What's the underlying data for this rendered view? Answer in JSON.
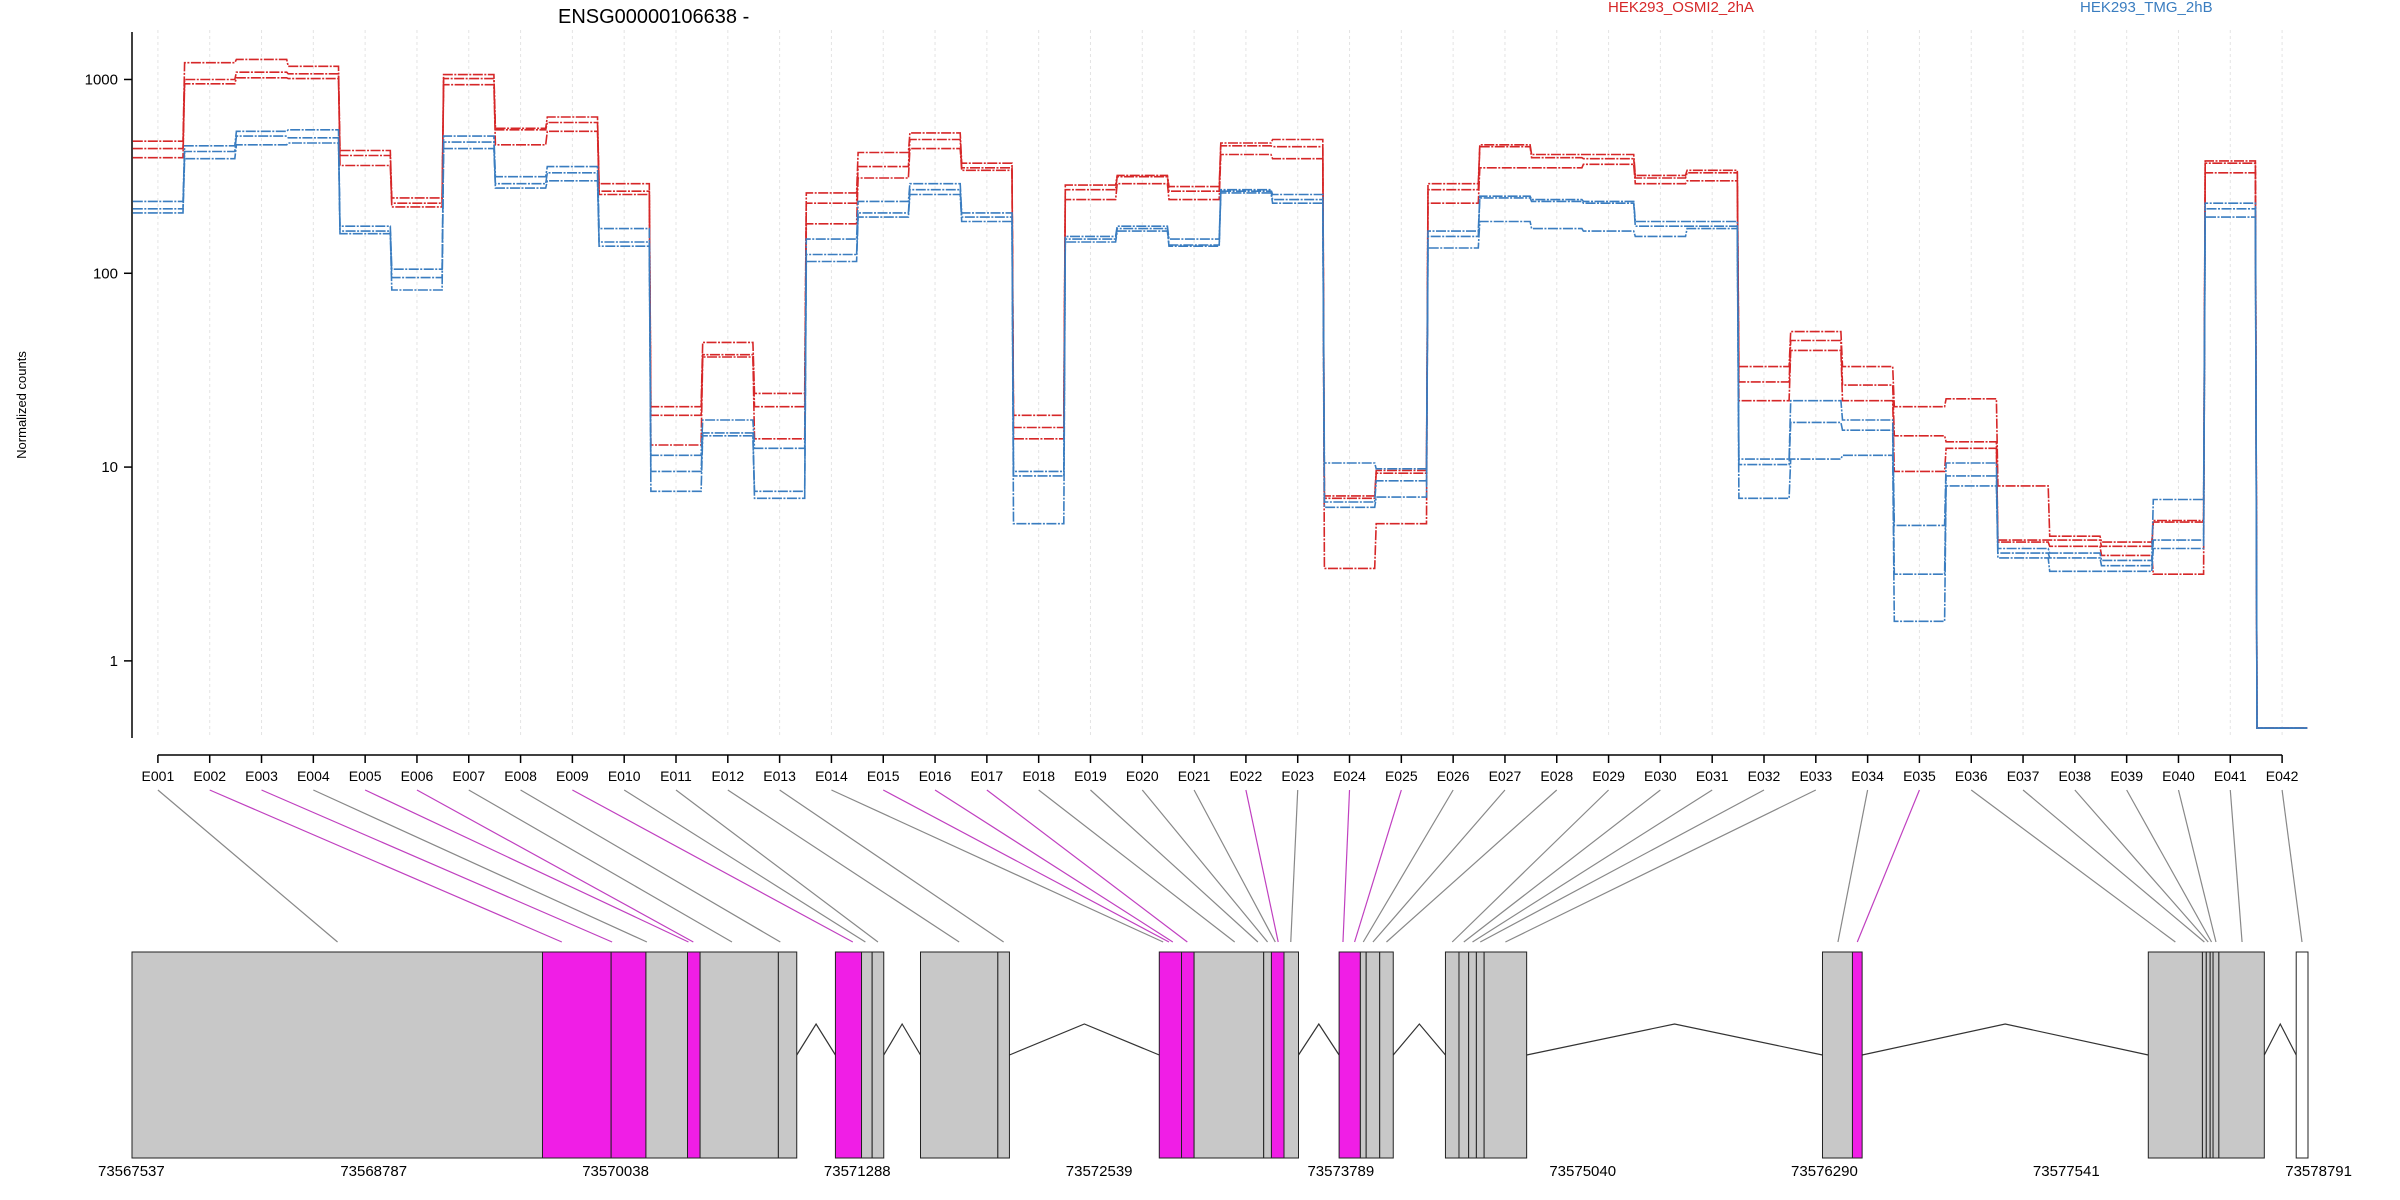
{
  "chart_data": {
    "type": "line",
    "title": "ENSG00000106638 -",
    "ylabel": "Normalized counts",
    "yscale": "log",
    "ylim": [
      0.4,
      1800
    ],
    "yticks": [
      "1",
      "10",
      "100",
      "1000"
    ],
    "ytick_values": [
      1,
      10,
      100,
      1000
    ],
    "categories": [
      "E001",
      "E002",
      "E003",
      "E004",
      "E005",
      "E006",
      "E007",
      "E008",
      "E009",
      "E010",
      "E011",
      "E012",
      "E013",
      "E014",
      "E015",
      "E016",
      "E017",
      "E018",
      "E019",
      "E020",
      "E021",
      "E022",
      "E023",
      "E024",
      "E025",
      "E026",
      "E027",
      "E028",
      "E029",
      "E030",
      "E031",
      "E032",
      "E033",
      "E034",
      "E035",
      "E036",
      "E037",
      "E038",
      "E039",
      "E040",
      "E041",
      "E042"
    ],
    "legend": [
      {
        "name": "HEK293_OSMI2_2hA",
        "color": "#D62728"
      },
      {
        "name": "HEK293_TMG_2hB",
        "color": "#3A7DC0"
      }
    ],
    "series": [
      {
        "group": 0,
        "values": [
          480,
          1220,
          1270,
          1170,
          430,
          245,
          1060,
          560,
          640,
          290,
          20.5,
          44,
          24,
          260,
          420,
          530,
          370,
          18.5,
          285,
          320,
          280,
          470,
          490,
          7.1,
          9.6,
          290,
          460,
          410,
          410,
          320,
          340,
          33,
          50,
          33,
          20.5,
          22.5,
          8,
          4.4,
          4.1,
          5.3,
          380,
          0.45
        ]
      },
      {
        "group": 0,
        "values": [
          440,
          1000,
          1090,
          1070,
          405,
          230,
          1010,
          550,
          600,
          265,
          18.5,
          38,
          20.5,
          230,
          355,
          490,
          350,
          16,
          270,
          315,
          265,
          455,
          450,
          6.9,
          9.3,
          270,
          450,
          395,
          390,
          310,
          330,
          27.5,
          45,
          26.5,
          14.5,
          13.5,
          4.2,
          4.2,
          3.9,
          5.2,
          370,
          0.45
        ]
      },
      {
        "group": 0,
        "values": [
          395,
          950,
          1020,
          1010,
          360,
          220,
          940,
          460,
          540,
          255,
          13,
          37,
          14,
          180,
          310,
          440,
          340,
          14,
          240,
          290,
          240,
          410,
          390,
          3,
          5.1,
          230,
          350,
          350,
          365,
          290,
          300,
          22,
          40,
          22,
          9.5,
          12.5,
          4.1,
          3.9,
          3.5,
          2.8,
          330,
          0.45
        ]
      },
      {
        "group": 1,
        "values": [
          235,
          455,
          540,
          550,
          175,
          105,
          510,
          315,
          355,
          170,
          11.5,
          17.5,
          12.5,
          150,
          235,
          290,
          205,
          9.5,
          155,
          175,
          150,
          270,
          255,
          10.5,
          9.8,
          165,
          250,
          240,
          235,
          185,
          185,
          11,
          22,
          17.5,
          5,
          10.5,
          3.8,
          3.6,
          3.3,
          6.8,
          230,
          0.45
        ]
      },
      {
        "group": 1,
        "values": [
          215,
          425,
          510,
          500,
          165,
          95,
          475,
          290,
          330,
          145,
          9.5,
          15,
          7.5,
          125,
          205,
          270,
          195,
          9,
          150,
          170,
          140,
          265,
          240,
          6.6,
          8.5,
          155,
          245,
          235,
          230,
          175,
          175,
          10.3,
          17,
          15.5,
          2.8,
          9,
          3.6,
          3.4,
          3.1,
          4.2,
          215,
          0.45
        ]
      },
      {
        "group": 1,
        "values": [
          205,
          390,
          460,
          470,
          160,
          82,
          440,
          275,
          300,
          138,
          7.5,
          14.5,
          6.9,
          115,
          195,
          255,
          185,
          5.1,
          145,
          165,
          138,
          260,
          230,
          6.2,
          7,
          135,
          185,
          170,
          165,
          155,
          170,
          6.9,
          11,
          11.5,
          1.6,
          8,
          3.4,
          2.9,
          2.9,
          3.8,
          195,
          0.45
        ]
      }
    ],
    "genomic_axis": {
      "tick_labels": [
        "73567537",
        "73568787",
        "73570038",
        "73571288",
        "73572539",
        "73573789",
        "73575040",
        "73576290",
        "73577541",
        "73578791"
      ],
      "start": 73567537,
      "end": 73578791
    },
    "exons": [
      {
        "start": 73567537,
        "end": 73569660,
        "sig": false
      },
      {
        "start": 73569660,
        "end": 73570015,
        "sig": true
      },
      {
        "start": 73570015,
        "end": 73570195,
        "sig": true
      },
      {
        "start": 73570195,
        "end": 73570410,
        "sig": false
      },
      {
        "start": 73570410,
        "end": 73570475,
        "sig": true
      },
      {
        "start": 73570475,
        "end": 73570880,
        "sig": false
      },
      {
        "start": 73570880,
        "end": 73570975,
        "sig": false
      },
      {
        "start": 73571175,
        "end": 73571310,
        "sig": true
      },
      {
        "start": 73571310,
        "end": 73571365,
        "sig": false
      },
      {
        "start": 73571365,
        "end": 73571425,
        "sig": false
      },
      {
        "start": 73571615,
        "end": 73572015,
        "sig": false
      },
      {
        "start": 73572015,
        "end": 73572075,
        "sig": false
      },
      {
        "start": 73572850,
        "end": 73572965,
        "sig": true
      },
      {
        "start": 73572965,
        "end": 73573030,
        "sig": true
      },
      {
        "start": 73573030,
        "end": 73573390,
        "sig": false
      },
      {
        "start": 73573390,
        "end": 73573430,
        "sig": false
      },
      {
        "start": 73573430,
        "end": 73573495,
        "sig": true
      },
      {
        "start": 73573495,
        "end": 73573570,
        "sig": false
      },
      {
        "start": 73573780,
        "end": 73573890,
        "sig": true
      },
      {
        "start": 73573890,
        "end": 73573920,
        "sig": false
      },
      {
        "start": 73573920,
        "end": 73573990,
        "sig": false
      },
      {
        "start": 73573990,
        "end": 73574060,
        "sig": false
      },
      {
        "start": 73574330,
        "end": 73574400,
        "sig": false
      },
      {
        "start": 73574400,
        "end": 73574450,
        "sig": false
      },
      {
        "start": 73574450,
        "end": 73574490,
        "sig": false
      },
      {
        "start": 73574490,
        "end": 73574530,
        "sig": false
      },
      {
        "start": 73574530,
        "end": 73574750,
        "sig": false
      },
      {
        "start": 73576280,
        "end": 73576435,
        "sig": false
      },
      {
        "start": 73576435,
        "end": 73576485,
        "sig": true
      },
      {
        "start": 73577965,
        "end": 73578245,
        "sig": false
      },
      {
        "start": 73578245,
        "end": 73578265,
        "sig": false
      },
      {
        "start": 73578265,
        "end": 73578285,
        "sig": false
      },
      {
        "start": 73578285,
        "end": 73578300,
        "sig": false
      },
      {
        "start": 73578300,
        "end": 73578330,
        "sig": false
      },
      {
        "start": 73578330,
        "end": 73578565,
        "sig": false
      },
      {
        "start": 73578730,
        "end": 73578791,
        "sig": false,
        "outline": true
      }
    ],
    "connectors": [
      {
        "exon": "E001",
        "bin": 73568600,
        "sig": false
      },
      {
        "exon": "E002",
        "bin": 73569760,
        "sig": true
      },
      {
        "exon": "E003",
        "bin": 73570020,
        "sig": true
      },
      {
        "exon": "E004",
        "bin": 73570200,
        "sig": false
      },
      {
        "exon": "E005",
        "bin": 73570415,
        "sig": true
      },
      {
        "exon": "E006",
        "bin": 73570440,
        "sig": true
      },
      {
        "exon": "E007",
        "bin": 73570640,
        "sig": false
      },
      {
        "exon": "E008",
        "bin": 73570890,
        "sig": false
      },
      {
        "exon": "E009",
        "bin": 73571265,
        "sig": true
      },
      {
        "exon": "E010",
        "bin": 73571330,
        "sig": false
      },
      {
        "exon": "E011",
        "bin": 73571395,
        "sig": false
      },
      {
        "exon": "E012",
        "bin": 73571815,
        "sig": false
      },
      {
        "exon": "E013",
        "bin": 73572045,
        "sig": false
      },
      {
        "exon": "E014",
        "bin": 73572870,
        "sig": false
      },
      {
        "exon": "E015",
        "bin": 73572900,
        "sig": true
      },
      {
        "exon": "E016",
        "bin": 73572920,
        "sig": true
      },
      {
        "exon": "E017",
        "bin": 73572995,
        "sig": true
      },
      {
        "exon": "E018",
        "bin": 73573240,
        "sig": false
      },
      {
        "exon": "E019",
        "bin": 73573360,
        "sig": false
      },
      {
        "exon": "E020",
        "bin": 73573410,
        "sig": false
      },
      {
        "exon": "E021",
        "bin": 73573450,
        "sig": false
      },
      {
        "exon": "E022",
        "bin": 73573465,
        "sig": true
      },
      {
        "exon": "E023",
        "bin": 73573530,
        "sig": false
      },
      {
        "exon": "E024",
        "bin": 73573800,
        "sig": true
      },
      {
        "exon": "E025",
        "bin": 73573860,
        "sig": true
      },
      {
        "exon": "E026",
        "bin": 73573905,
        "sig": false
      },
      {
        "exon": "E027",
        "bin": 73573955,
        "sig": false
      },
      {
        "exon": "E028",
        "bin": 73574025,
        "sig": false
      },
      {
        "exon": "E029",
        "bin": 73574365,
        "sig": false
      },
      {
        "exon": "E030",
        "bin": 73574425,
        "sig": false
      },
      {
        "exon": "E031",
        "bin": 73574470,
        "sig": false
      },
      {
        "exon": "E032",
        "bin": 73574510,
        "sig": false
      },
      {
        "exon": "E033",
        "bin": 73574640,
        "sig": false
      },
      {
        "exon": "E034",
        "bin": 73576360,
        "sig": false
      },
      {
        "exon": "E035",
        "bin": 73576460,
        "sig": true
      },
      {
        "exon": "E036",
        "bin": 73578105,
        "sig": false
      },
      {
        "exon": "E037",
        "bin": 73578255,
        "sig": false
      },
      {
        "exon": "E038",
        "bin": 73578275,
        "sig": false
      },
      {
        "exon": "E039",
        "bin": 73578292,
        "sig": false
      },
      {
        "exon": "E040",
        "bin": 73578315,
        "sig": false
      },
      {
        "exon": "E041",
        "bin": 73578450,
        "sig": false
      },
      {
        "exon": "E042",
        "bin": 73578760,
        "sig": false
      }
    ],
    "colors": {
      "group0": "#D62728",
      "group1": "#3A7DC0",
      "exon_fill": "#C8C8C8",
      "exon_sig": "#F01EE6",
      "connector": "#888888",
      "connector_sig": "#C040C0",
      "grid": "#E4E4E4"
    }
  }
}
